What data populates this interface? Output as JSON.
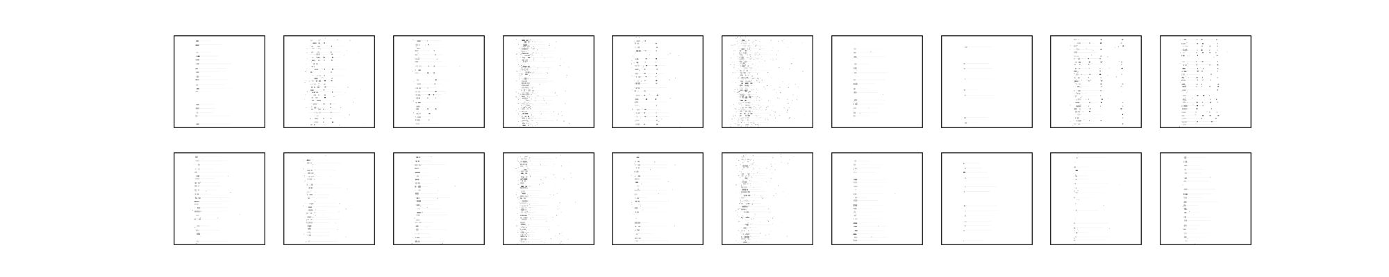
{
  "chart_data": {
    "type": "heatmap",
    "colormap": "gray_r",
    "background_color": "#ffffff",
    "frame_color": "#000000",
    "grid": false,
    "axes_ticks": false,
    "title": "",
    "xlabel": "",
    "ylabel": "",
    "grid_shape": [
      2,
      10
    ],
    "panels": [
      {
        "row": 0,
        "col": 0,
        "style": "narrow-band",
        "band_center": 0.25,
        "band_spread": 0.01,
        "stripes": 22,
        "density": 0.55,
        "noise": 0.0,
        "side_peaks": []
      },
      {
        "row": 0,
        "col": 1,
        "style": "multi-band",
        "band_center": 0.34,
        "band_spread": 0.06,
        "stripes": 30,
        "density": 0.9,
        "noise": 0.05,
        "side_peaks": [
          0.44,
          0.52
        ]
      },
      {
        "row": 0,
        "col": 2,
        "style": "narrow-band",
        "band_center": 0.26,
        "band_spread": 0.03,
        "stripes": 24,
        "density": 0.7,
        "noise": 0.02,
        "side_peaks": [
          0.38,
          0.45
        ]
      },
      {
        "row": 0,
        "col": 3,
        "style": "diffuse",
        "band_center": 0.24,
        "band_spread": 0.05,
        "stripes": 40,
        "density": 0.8,
        "noise": 0.22,
        "side_peaks": []
      },
      {
        "row": 0,
        "col": 4,
        "style": "multi-band",
        "band_center": 0.27,
        "band_spread": 0.03,
        "stripes": 24,
        "density": 0.8,
        "noise": 0.04,
        "side_peaks": [
          0.36,
          0.48
        ]
      },
      {
        "row": 0,
        "col": 5,
        "style": "diffuse",
        "band_center": 0.25,
        "band_spread": 0.08,
        "stripes": 40,
        "density": 0.85,
        "noise": 0.28,
        "side_peaks": []
      },
      {
        "row": 0,
        "col": 6,
        "style": "narrow-band",
        "band_center": 0.25,
        "band_spread": 0.015,
        "stripes": 22,
        "density": 0.6,
        "noise": 0.01,
        "side_peaks": []
      },
      {
        "row": 0,
        "col": 7,
        "style": "sparse",
        "band_center": 0.25,
        "band_spread": 0.008,
        "stripes": 16,
        "density": 0.4,
        "noise": 0.0,
        "side_peaks": []
      },
      {
        "row": 0,
        "col": 8,
        "style": "multi-band",
        "band_center": 0.29,
        "band_spread": 0.04,
        "stripes": 28,
        "density": 0.85,
        "noise": 0.05,
        "side_peaks": [
          0.42,
          0.55,
          0.78
        ]
      },
      {
        "row": 0,
        "col": 9,
        "style": "multi-band",
        "band_center": 0.26,
        "band_spread": 0.03,
        "stripes": 28,
        "density": 0.8,
        "noise": 0.04,
        "side_peaks": [
          0.4,
          0.46,
          0.55,
          0.62
        ]
      },
      {
        "row": 1,
        "col": 0,
        "style": "narrow-band",
        "band_center": 0.25,
        "band_spread": 0.03,
        "stripes": 24,
        "density": 0.75,
        "noise": 0.02,
        "side_peaks": []
      },
      {
        "row": 1,
        "col": 1,
        "style": "narrow-band",
        "band_center": 0.28,
        "band_spread": 0.035,
        "stripes": 28,
        "density": 0.75,
        "noise": 0.06,
        "side_peaks": []
      },
      {
        "row": 1,
        "col": 2,
        "style": "narrow-band",
        "band_center": 0.26,
        "band_spread": 0.03,
        "stripes": 24,
        "density": 0.75,
        "noise": 0.02,
        "side_peaks": []
      },
      {
        "row": 1,
        "col": 3,
        "style": "diffuse",
        "band_center": 0.22,
        "band_spread": 0.04,
        "stripes": 36,
        "density": 0.85,
        "noise": 0.15,
        "side_peaks": []
      },
      {
        "row": 1,
        "col": 4,
        "style": "narrow-band",
        "band_center": 0.27,
        "band_spread": 0.03,
        "stripes": 24,
        "density": 0.8,
        "noise": 0.03,
        "side_peaks": []
      },
      {
        "row": 1,
        "col": 5,
        "style": "diffuse",
        "band_center": 0.25,
        "band_spread": 0.05,
        "stripes": 32,
        "density": 0.7,
        "noise": 0.15,
        "side_peaks": []
      },
      {
        "row": 1,
        "col": 6,
        "style": "narrow-band",
        "band_center": 0.25,
        "band_spread": 0.012,
        "stripes": 24,
        "density": 0.7,
        "noise": 0.01,
        "side_peaks": []
      },
      {
        "row": 1,
        "col": 7,
        "style": "sparse",
        "band_center": 0.25,
        "band_spread": 0.008,
        "stripes": 18,
        "density": 0.45,
        "noise": 0.0,
        "side_peaks": []
      },
      {
        "row": 1,
        "col": 8,
        "style": "sparse",
        "band_center": 0.27,
        "band_spread": 0.02,
        "stripes": 20,
        "density": 0.55,
        "noise": 0.02,
        "side_peaks": []
      },
      {
        "row": 1,
        "col": 9,
        "style": "narrow-band",
        "band_center": 0.27,
        "band_spread": 0.015,
        "stripes": 22,
        "density": 0.65,
        "noise": 0.01,
        "side_peaks": []
      }
    ]
  }
}
